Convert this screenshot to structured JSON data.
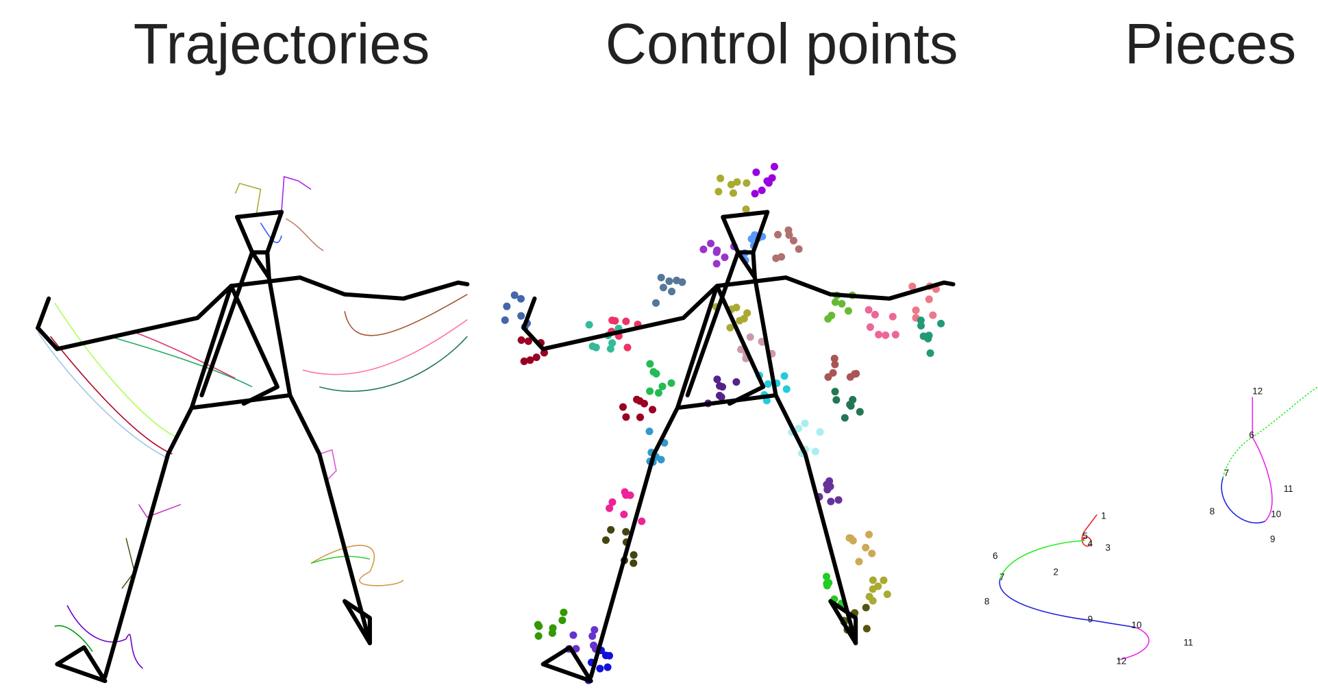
{
  "panels": [
    {
      "title": "Trajectories"
    },
    {
      "title": "Control points"
    },
    {
      "title": "Pieces",
      "curves": [
        {
          "labels": [
            1,
            2,
            3,
            4,
            5,
            6,
            7,
            8,
            9,
            10,
            11,
            12
          ]
        },
        {
          "labels": [
            6,
            7,
            8,
            9,
            10,
            11,
            12
          ]
        }
      ]
    }
  ]
}
